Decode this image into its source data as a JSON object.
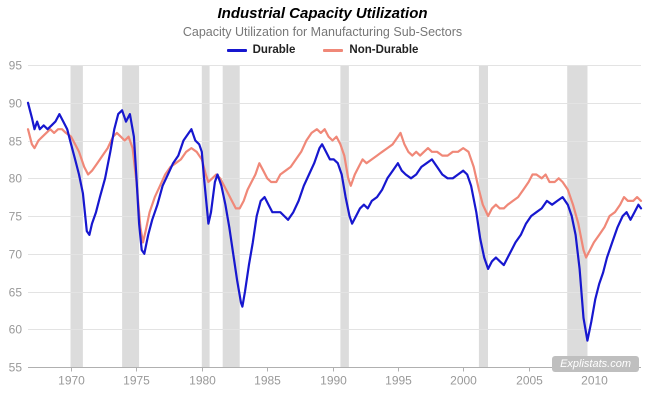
{
  "header": {
    "title": "Industrial Capacity Utilization",
    "subtitle": "Capacity Utilization for Manufacturing Sub-Sectors"
  },
  "legend": [
    {
      "label": "Durable",
      "color": "#1717cf"
    },
    {
      "label": "Non-Durable",
      "color": "#f08878"
    }
  ],
  "watermark": "Explistats.com",
  "chart_data": {
    "type": "line",
    "title": "Industrial Capacity Utilization",
    "subtitle": "Capacity Utilization for Manufacturing Sub-Sectors",
    "xlabel": "",
    "ylabel": "",
    "xlim": [
      1966.7,
      2013.6
    ],
    "ylim": [
      55,
      95
    ],
    "xticks": [
      1970,
      1975,
      1980,
      1985,
      1990,
      1995,
      2000,
      2005,
      2010
    ],
    "yticks": [
      55,
      60,
      65,
      70,
      75,
      80,
      85,
      90,
      95
    ],
    "grid": "horizontal",
    "legend_position": "top",
    "recession_bands": [
      [
        1969.95,
        1970.9
      ],
      [
        1973.9,
        1975.2
      ],
      [
        1980.0,
        1980.6
      ],
      [
        1981.6,
        1982.9
      ],
      [
        1990.6,
        1991.25
      ],
      [
        2001.2,
        2001.9
      ],
      [
        2007.95,
        2009.5
      ]
    ],
    "colors": {
      "band": "#dcdcdc",
      "grid": "#e3e3e3",
      "axis": "#b0b0b0",
      "tick_label": "#999999"
    },
    "series": [
      {
        "name": "Durable",
        "color": "#1717cf",
        "points": [
          [
            1966.7,
            90
          ],
          [
            1967,
            88
          ],
          [
            1967.2,
            86.5
          ],
          [
            1967.4,
            87.5
          ],
          [
            1967.6,
            86.5
          ],
          [
            1967.9,
            87
          ],
          [
            1968.2,
            86.5
          ],
          [
            1968.5,
            87
          ],
          [
            1968.8,
            87.5
          ],
          [
            1969.1,
            88.5
          ],
          [
            1969.4,
            87.5
          ],
          [
            1969.7,
            86.5
          ],
          [
            1970,
            84.5
          ],
          [
            1970.3,
            82.5
          ],
          [
            1970.6,
            80.5
          ],
          [
            1970.9,
            78
          ],
          [
            1971.2,
            73
          ],
          [
            1971.4,
            72.5
          ],
          [
            1971.6,
            74
          ],
          [
            1971.9,
            75.5
          ],
          [
            1972.2,
            77.5
          ],
          [
            1972.6,
            80
          ],
          [
            1973,
            83.5
          ],
          [
            1973.3,
            86.5
          ],
          [
            1973.6,
            88.5
          ],
          [
            1973.9,
            89
          ],
          [
            1974.2,
            87.5
          ],
          [
            1974.5,
            88.5
          ],
          [
            1974.8,
            85.5
          ],
          [
            1975,
            80
          ],
          [
            1975.2,
            74
          ],
          [
            1975.4,
            70.5
          ],
          [
            1975.6,
            70
          ],
          [
            1975.9,
            72.5
          ],
          [
            1976.2,
            74.5
          ],
          [
            1976.6,
            76.5
          ],
          [
            1977,
            79
          ],
          [
            1977.4,
            80.5
          ],
          [
            1977.8,
            82
          ],
          [
            1978.2,
            83
          ],
          [
            1978.6,
            85
          ],
          [
            1979,
            86
          ],
          [
            1979.2,
            86.5
          ],
          [
            1979.5,
            85
          ],
          [
            1979.8,
            84.5
          ],
          [
            1980,
            83.5
          ],
          [
            1980.2,
            79.5
          ],
          [
            1980.5,
            74
          ],
          [
            1980.7,
            75.5
          ],
          [
            1981,
            79.5
          ],
          [
            1981.2,
            80.5
          ],
          [
            1981.5,
            79
          ],
          [
            1981.8,
            76.5
          ],
          [
            1982.1,
            73.5
          ],
          [
            1982.4,
            70
          ],
          [
            1982.7,
            66.5
          ],
          [
            1983,
            63.5
          ],
          [
            1983.1,
            63
          ],
          [
            1983.3,
            65
          ],
          [
            1983.6,
            68.5
          ],
          [
            1983.9,
            71.5
          ],
          [
            1984.2,
            75
          ],
          [
            1984.5,
            77
          ],
          [
            1984.8,
            77.5
          ],
          [
            1985.1,
            76.5
          ],
          [
            1985.4,
            75.5
          ],
          [
            1985.7,
            75.5
          ],
          [
            1986,
            75.5
          ],
          [
            1986.3,
            75
          ],
          [
            1986.6,
            74.5
          ],
          [
            1987,
            75.5
          ],
          [
            1987.4,
            77
          ],
          [
            1987.8,
            79
          ],
          [
            1988.2,
            80.5
          ],
          [
            1988.6,
            82
          ],
          [
            1989,
            84
          ],
          [
            1989.2,
            84.5
          ],
          [
            1989.5,
            83.5
          ],
          [
            1989.8,
            82.5
          ],
          [
            1990.1,
            82.5
          ],
          [
            1990.4,
            82
          ],
          [
            1990.7,
            80.5
          ],
          [
            1991,
            77.5
          ],
          [
            1991.3,
            75
          ],
          [
            1991.5,
            74
          ],
          [
            1991.8,
            75
          ],
          [
            1992.1,
            76
          ],
          [
            1992.4,
            76.5
          ],
          [
            1992.7,
            76
          ],
          [
            1993,
            77
          ],
          [
            1993.4,
            77.5
          ],
          [
            1993.8,
            78.5
          ],
          [
            1994.2,
            80
          ],
          [
            1994.6,
            81
          ],
          [
            1995,
            82
          ],
          [
            1995.3,
            81
          ],
          [
            1995.6,
            80.5
          ],
          [
            1996,
            80
          ],
          [
            1996.4,
            80.5
          ],
          [
            1996.8,
            81.5
          ],
          [
            1997.2,
            82
          ],
          [
            1997.6,
            82.5
          ],
          [
            1998,
            81.5
          ],
          [
            1998.4,
            80.5
          ],
          [
            1998.8,
            80
          ],
          [
            1999.2,
            80
          ],
          [
            1999.6,
            80.5
          ],
          [
            2000,
            81
          ],
          [
            2000.3,
            80.5
          ],
          [
            2000.6,
            79
          ],
          [
            2001,
            75.5
          ],
          [
            2001.3,
            72
          ],
          [
            2001.6,
            69.5
          ],
          [
            2001.9,
            68
          ],
          [
            2002.2,
            69
          ],
          [
            2002.5,
            69.5
          ],
          [
            2002.8,
            69
          ],
          [
            2003.1,
            68.5
          ],
          [
            2003.4,
            69.5
          ],
          [
            2003.7,
            70.5
          ],
          [
            2004,
            71.5
          ],
          [
            2004.4,
            72.5
          ],
          [
            2004.8,
            74
          ],
          [
            2005.2,
            75
          ],
          [
            2005.6,
            75.5
          ],
          [
            2006,
            76
          ],
          [
            2006.4,
            77
          ],
          [
            2006.8,
            76.5
          ],
          [
            2007.2,
            77
          ],
          [
            2007.6,
            77.5
          ],
          [
            2008,
            76.5
          ],
          [
            2008.3,
            75
          ],
          [
            2008.6,
            72.5
          ],
          [
            2008.9,
            68
          ],
          [
            2009.2,
            61.5
          ],
          [
            2009.5,
            58.5
          ],
          [
            2009.8,
            61
          ],
          [
            2010.1,
            64
          ],
          [
            2010.4,
            66
          ],
          [
            2010.7,
            67.5
          ],
          [
            2011,
            69.5
          ],
          [
            2011.4,
            71.5
          ],
          [
            2011.8,
            73.5
          ],
          [
            2012.2,
            75
          ],
          [
            2012.5,
            75.5
          ],
          [
            2012.8,
            74.5
          ],
          [
            2013.1,
            75.5
          ],
          [
            2013.4,
            76.5
          ],
          [
            2013.6,
            76
          ]
        ]
      },
      {
        "name": "Non-Durable",
        "color": "#f08878",
        "points": [
          [
            1966.7,
            86.5
          ],
          [
            1967,
            84.5
          ],
          [
            1967.2,
            84
          ],
          [
            1967.5,
            85
          ],
          [
            1967.8,
            85.5
          ],
          [
            1968.1,
            86
          ],
          [
            1968.4,
            86.5
          ],
          [
            1968.7,
            86
          ],
          [
            1969,
            86.5
          ],
          [
            1969.3,
            86.5
          ],
          [
            1969.6,
            86
          ],
          [
            1970,
            85.5
          ],
          [
            1970.3,
            84.5
          ],
          [
            1970.6,
            83.5
          ],
          [
            1971,
            81.5
          ],
          [
            1971.3,
            80.5
          ],
          [
            1971.6,
            81
          ],
          [
            1972,
            82
          ],
          [
            1972.4,
            83
          ],
          [
            1972.8,
            84
          ],
          [
            1973.2,
            85.5
          ],
          [
            1973.5,
            86
          ],
          [
            1973.8,
            85.5
          ],
          [
            1974.1,
            85
          ],
          [
            1974.4,
            85.5
          ],
          [
            1974.7,
            84
          ],
          [
            1975,
            79.5
          ],
          [
            1975.3,
            73.5
          ],
          [
            1975.5,
            71.5
          ],
          [
            1975.7,
            73
          ],
          [
            1976,
            75.5
          ],
          [
            1976.4,
            77.5
          ],
          [
            1976.8,
            79
          ],
          [
            1977.2,
            80.5
          ],
          [
            1977.6,
            81.5
          ],
          [
            1978,
            82
          ],
          [
            1978.4,
            82.5
          ],
          [
            1978.8,
            83.5
          ],
          [
            1979.2,
            84
          ],
          [
            1979.6,
            83.5
          ],
          [
            1980,
            82.5
          ],
          [
            1980.3,
            80.5
          ],
          [
            1980.5,
            79.5
          ],
          [
            1980.8,
            80
          ],
          [
            1981.1,
            80.5
          ],
          [
            1981.4,
            80
          ],
          [
            1981.7,
            79
          ],
          [
            1982,
            78
          ],
          [
            1982.3,
            77
          ],
          [
            1982.6,
            76
          ],
          [
            1982.9,
            76
          ],
          [
            1983.2,
            77
          ],
          [
            1983.5,
            78.5
          ],
          [
            1983.8,
            79.5
          ],
          [
            1984.1,
            80.5
          ],
          [
            1984.4,
            82
          ],
          [
            1984.7,
            81
          ],
          [
            1985,
            80
          ],
          [
            1985.3,
            79.5
          ],
          [
            1985.7,
            79.5
          ],
          [
            1986,
            80.5
          ],
          [
            1986.4,
            81
          ],
          [
            1986.8,
            81.5
          ],
          [
            1987.2,
            82.5
          ],
          [
            1987.6,
            83.5
          ],
          [
            1988,
            85
          ],
          [
            1988.4,
            86
          ],
          [
            1988.8,
            86.5
          ],
          [
            1989.1,
            86
          ],
          [
            1989.4,
            86.5
          ],
          [
            1989.7,
            85.5
          ],
          [
            1990,
            85
          ],
          [
            1990.3,
            85.5
          ],
          [
            1990.6,
            84.5
          ],
          [
            1990.9,
            83
          ],
          [
            1991.2,
            80
          ],
          [
            1991.4,
            79
          ],
          [
            1991.7,
            80.5
          ],
          [
            1992,
            81.5
          ],
          [
            1992.3,
            82.5
          ],
          [
            1992.6,
            82
          ],
          [
            1993,
            82.5
          ],
          [
            1993.4,
            83
          ],
          [
            1993.8,
            83.5
          ],
          [
            1994.2,
            84
          ],
          [
            1994.6,
            84.5
          ],
          [
            1995,
            85.5
          ],
          [
            1995.2,
            86
          ],
          [
            1995.5,
            84.5
          ],
          [
            1995.8,
            83.5
          ],
          [
            1996.1,
            83
          ],
          [
            1996.4,
            83.5
          ],
          [
            1996.7,
            83
          ],
          [
            1997,
            83.5
          ],
          [
            1997.3,
            84
          ],
          [
            1997.6,
            83.5
          ],
          [
            1998,
            83.5
          ],
          [
            1998.4,
            83
          ],
          [
            1998.8,
            83
          ],
          [
            1999.2,
            83.5
          ],
          [
            1999.6,
            83.5
          ],
          [
            2000,
            84
          ],
          [
            2000.4,
            83.5
          ],
          [
            2000.8,
            81.5
          ],
          [
            2001.2,
            78.5
          ],
          [
            2001.5,
            76.5
          ],
          [
            2001.9,
            75
          ],
          [
            2002.2,
            76
          ],
          [
            2002.5,
            76.5
          ],
          [
            2002.8,
            76
          ],
          [
            2003.1,
            76
          ],
          [
            2003.4,
            76.5
          ],
          [
            2003.8,
            77
          ],
          [
            2004.2,
            77.5
          ],
          [
            2004.6,
            78.5
          ],
          [
            2005,
            79.5
          ],
          [
            2005.3,
            80.5
          ],
          [
            2005.6,
            80.5
          ],
          [
            2006,
            80
          ],
          [
            2006.3,
            80.5
          ],
          [
            2006.6,
            79.5
          ],
          [
            2007,
            79.5
          ],
          [
            2007.3,
            80
          ],
          [
            2007.6,
            79.5
          ],
          [
            2008,
            78.5
          ],
          [
            2008.4,
            76.5
          ],
          [
            2008.8,
            74
          ],
          [
            2009.2,
            70.5
          ],
          [
            2009.4,
            69.5
          ],
          [
            2009.7,
            70.5
          ],
          [
            2010,
            71.5
          ],
          [
            2010.4,
            72.5
          ],
          [
            2010.8,
            73.5
          ],
          [
            2011.2,
            75
          ],
          [
            2011.6,
            75.5
          ],
          [
            2012,
            76.5
          ],
          [
            2012.3,
            77.5
          ],
          [
            2012.6,
            77
          ],
          [
            2013,
            77
          ],
          [
            2013.3,
            77.5
          ],
          [
            2013.6,
            77
          ]
        ]
      }
    ]
  }
}
